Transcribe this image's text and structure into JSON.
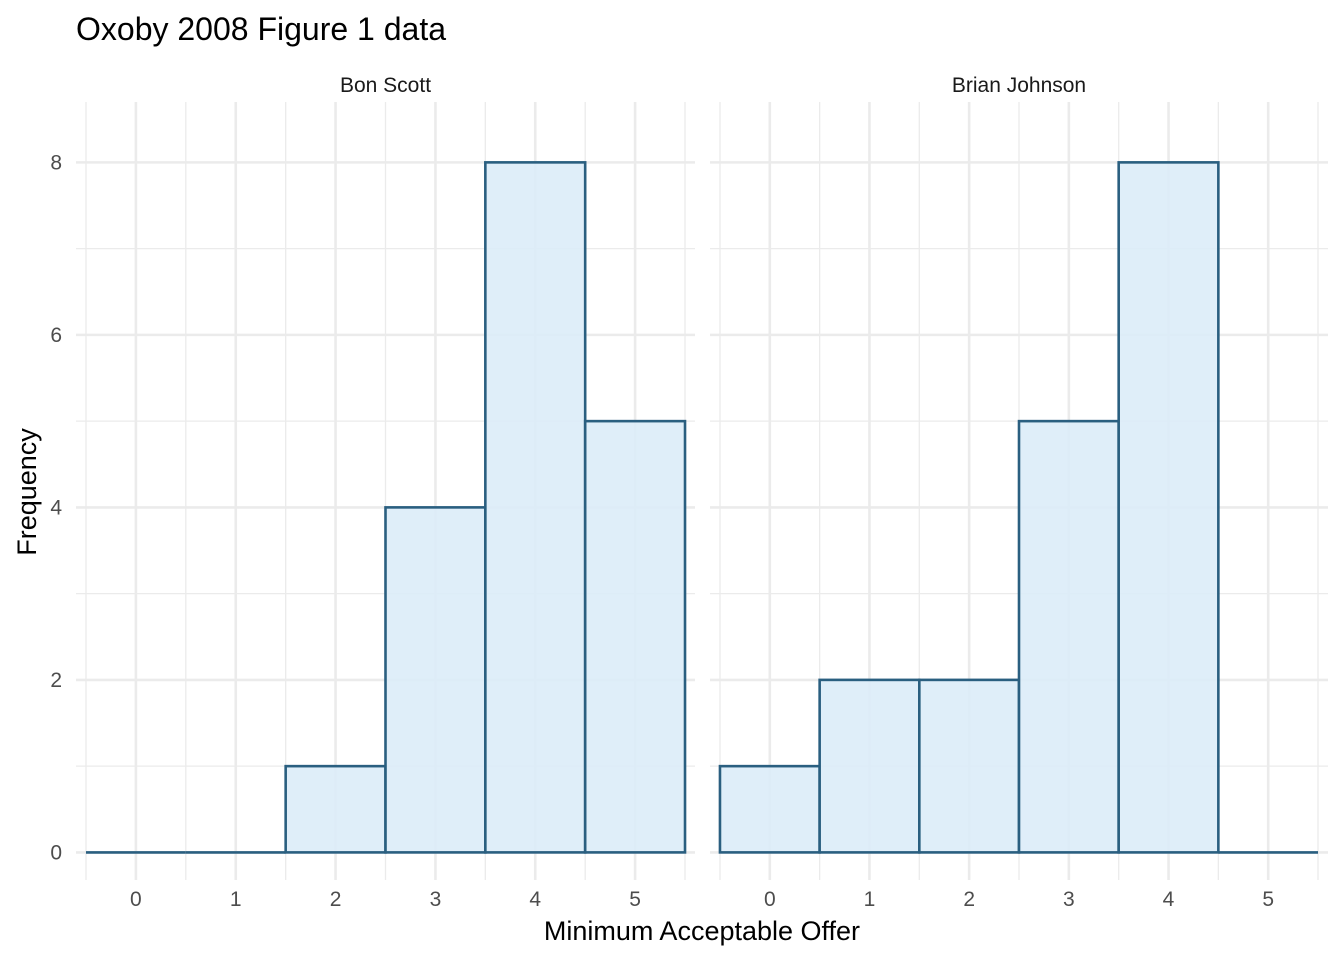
{
  "chart_data": {
    "type": "bar",
    "title": "Oxoby 2008 Figure 1 data",
    "xlabel": "Minimum Acceptable Offer",
    "ylabel": "Frequency",
    "x_ticks": [
      0,
      1,
      2,
      3,
      4,
      5
    ],
    "y_ticks": [
      0,
      2,
      4,
      6,
      8
    ],
    "xlim": [
      -0.6,
      5.6
    ],
    "ylim": [
      -0.32,
      8.7
    ],
    "grid": true,
    "fill_color": "#dbecf8",
    "outline_color": "#2a5f80",
    "panels": [
      {
        "name": "Bon Scott",
        "categories": [
          0,
          1,
          2,
          3,
          4,
          5
        ],
        "values": [
          0,
          0,
          1,
          4,
          8,
          5
        ]
      },
      {
        "name": "Brian Johnson",
        "categories": [
          0,
          1,
          2,
          3,
          4,
          5
        ],
        "values": [
          1,
          2,
          2,
          5,
          8,
          0
        ]
      }
    ]
  }
}
